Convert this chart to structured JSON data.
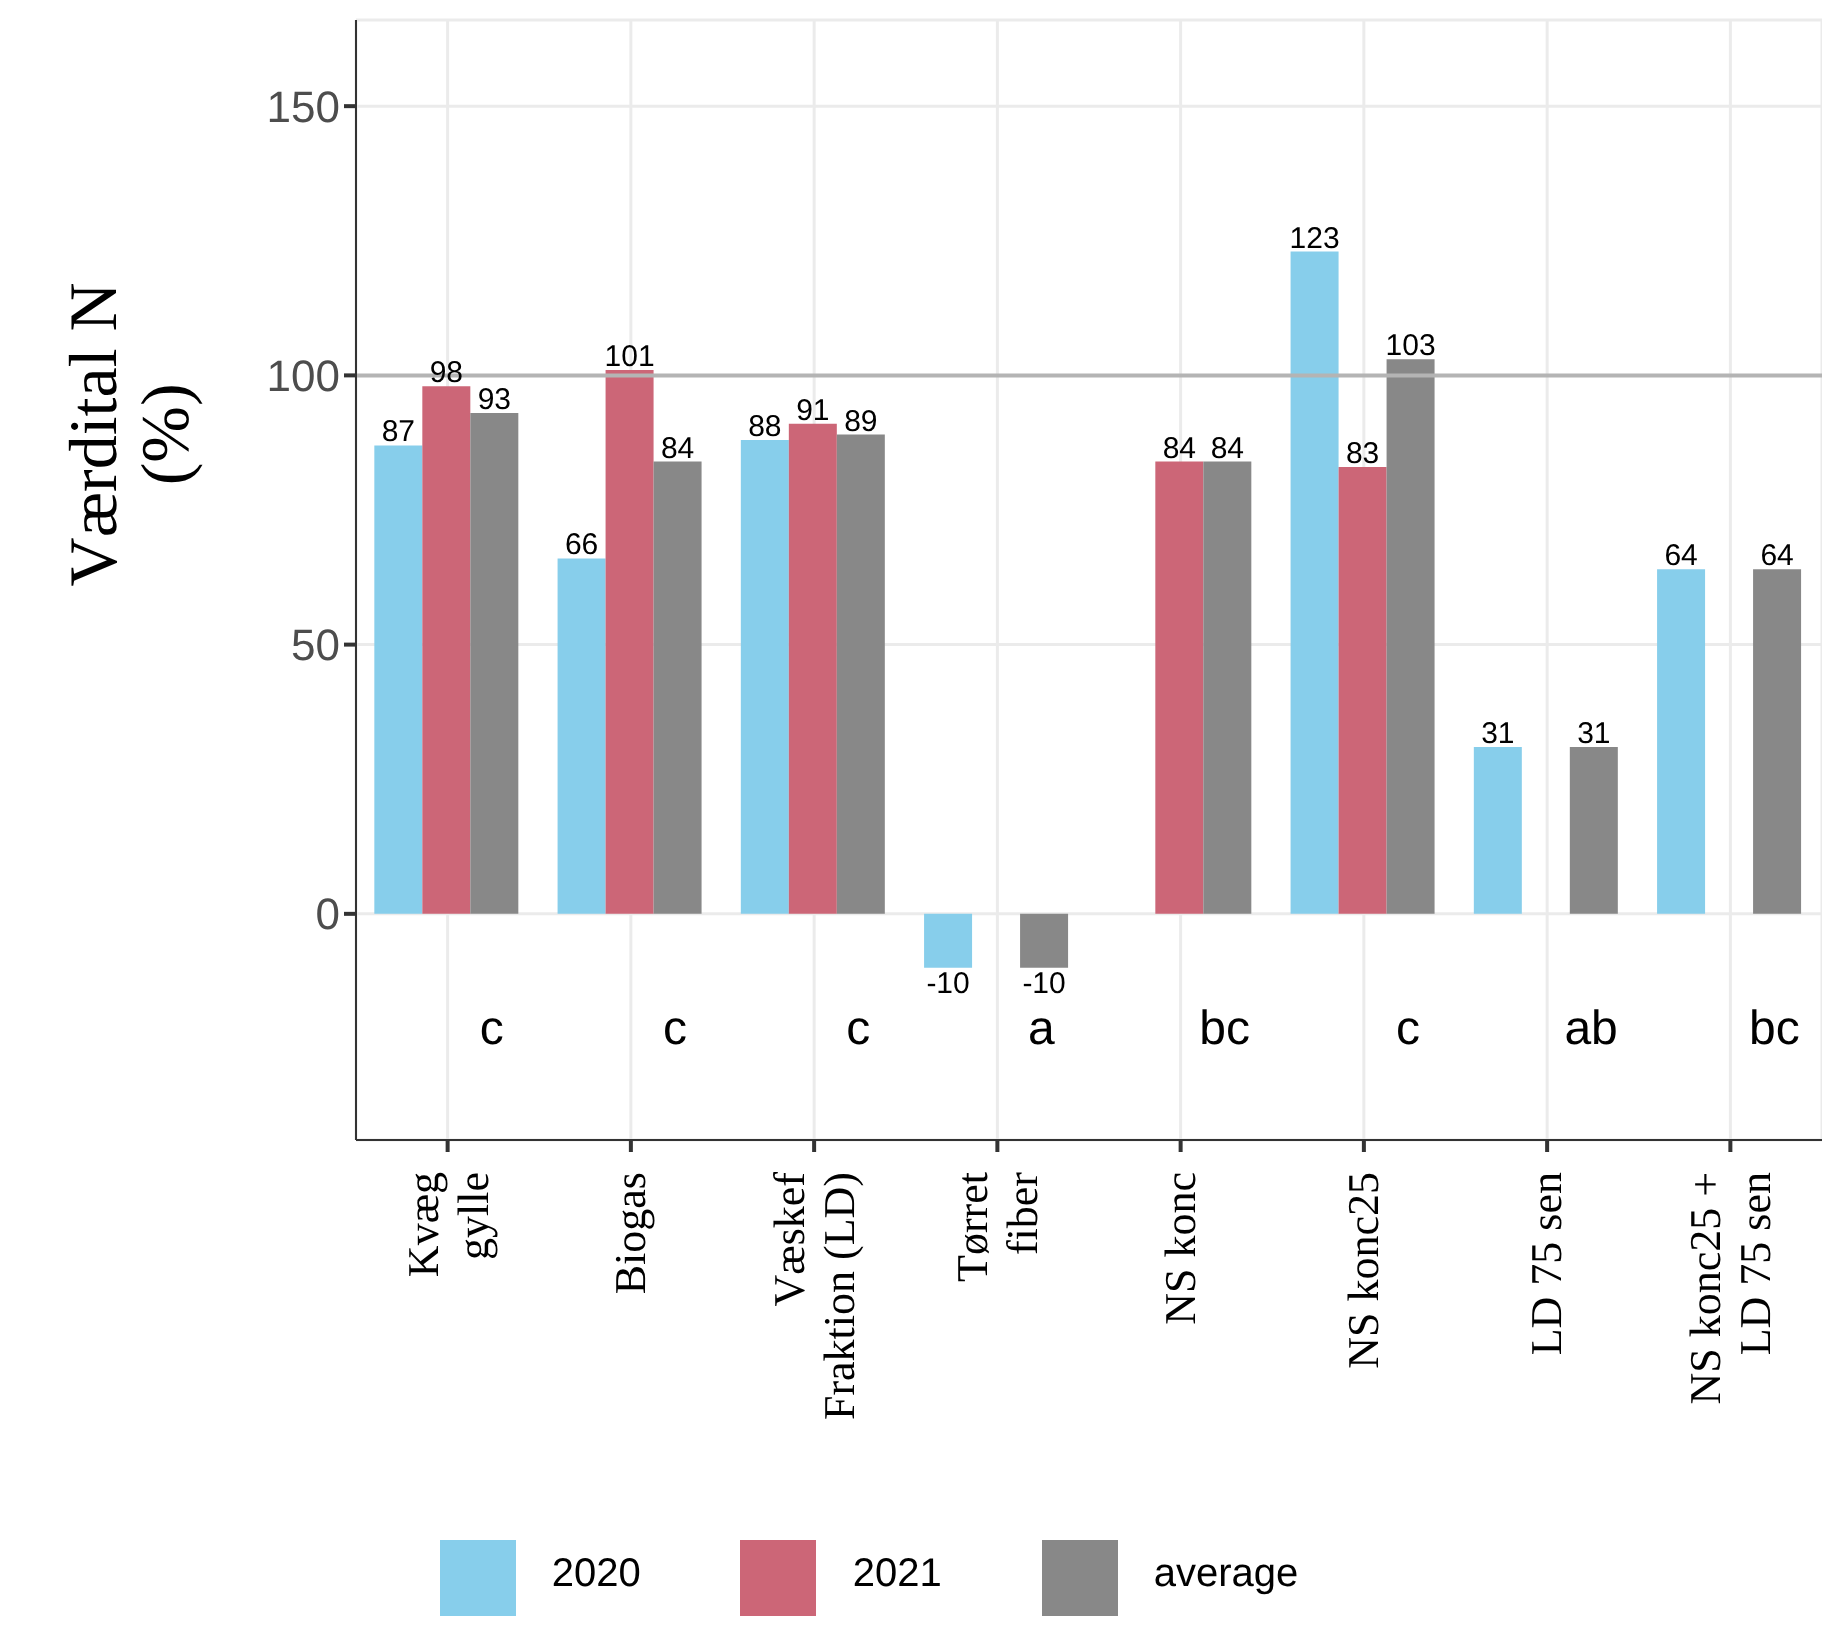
{
  "chart_data": {
    "type": "bar",
    "ylabel": "Værdital N\n(%)",
    "categories": [
      "Kvæg\ngylle",
      "Biogas",
      "Væskef\nFraktion (LD)",
      "Tørret\nfiber",
      "NS konc",
      "NS konc25",
      "LD 75 sen",
      "NS konc25 +\nLD 75 sen"
    ],
    "series": [
      {
        "name": "2020",
        "color": "#87ceeb",
        "values": [
          87,
          66,
          88,
          -10,
          null,
          123,
          31,
          64
        ]
      },
      {
        "name": "2021",
        "color": "#cc6677",
        "values": [
          98,
          101,
          91,
          null,
          84,
          83,
          null,
          null
        ]
      },
      {
        "name": "average",
        "color": "#888888",
        "values": [
          93,
          84,
          89,
          -10,
          84,
          103,
          31,
          64
        ]
      }
    ],
    "ylim": [
      -42,
      166
    ],
    "yticks": [
      0,
      50,
      100,
      150
    ],
    "grid": true,
    "legend": "bottom",
    "data_labels": true,
    "ref_lines": [
      {
        "axis": "y",
        "value": 100,
        "color": "#b4b4b4"
      }
    ],
    "annotations": [
      "c",
      "c",
      "c",
      "a",
      "bc",
      "c",
      "ab",
      "bc"
    ]
  }
}
